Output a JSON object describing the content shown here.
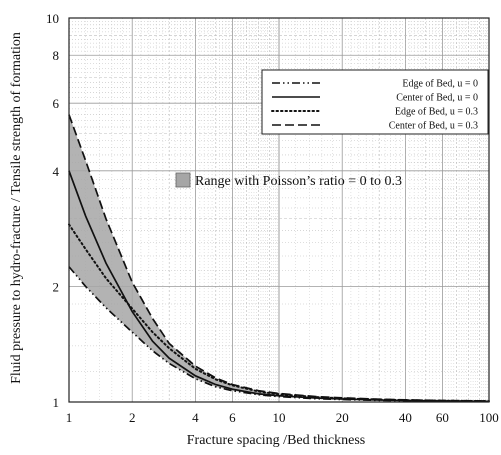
{
  "chart_data": {
    "type": "line",
    "xlabel": "Fracture spacing /Bed thickness",
    "ylabel": "Fluid pressure to hydro-fracture / Tensile strength of formation",
    "xscale": "log",
    "yscale": "log",
    "xlim": [
      1,
      100
    ],
    "ylim": [
      1,
      10
    ],
    "grid": true,
    "x_ticks": [
      {
        "v": 1,
        "label": "1"
      },
      {
        "v": 2,
        "label": "2"
      },
      {
        "v": 4,
        "label": "4"
      },
      {
        "v": 6,
        "label": "6"
      },
      {
        "v": 10,
        "label": "10"
      },
      {
        "v": 20,
        "label": "20"
      },
      {
        "v": 40,
        "label": "40"
      },
      {
        "v": 60,
        "label": "60"
      },
      {
        "v": 100,
        "label": "100"
      }
    ],
    "y_ticks": [
      {
        "v": 1,
        "label": "1"
      },
      {
        "v": 2,
        "label": "2"
      },
      {
        "v": 4,
        "label": "4"
      },
      {
        "v": 6,
        "label": "6"
      },
      {
        "v": 8,
        "label": "8"
      },
      {
        "v": 10,
        "label": "10"
      }
    ],
    "legend_position": "top-right",
    "series": [
      {
        "name": "Edge of Bed, u = 0",
        "dash": "dash-dot-dot",
        "x": [
          1,
          1.2,
          1.5,
          2,
          2.5,
          3,
          4,
          5,
          6,
          8,
          10,
          15,
          20,
          30,
          40,
          60,
          100
        ],
        "y": [
          2.25,
          2.0,
          1.76,
          1.52,
          1.36,
          1.26,
          1.15,
          1.095,
          1.07,
          1.045,
          1.033,
          1.02,
          1.015,
          1.01,
          1.008,
          1.005,
          1.003
        ]
      },
      {
        "name": "Center of Bed, u = 0",
        "dash": "solid",
        "x": [
          1,
          1.2,
          1.5,
          2,
          2.5,
          3,
          4,
          5,
          6,
          8,
          10,
          15,
          20,
          30,
          40,
          60,
          100
        ],
        "y": [
          4.0,
          3.05,
          2.3,
          1.72,
          1.44,
          1.3,
          1.17,
          1.11,
          1.08,
          1.05,
          1.038,
          1.024,
          1.018,
          1.012,
          1.009,
          1.006,
          1.004
        ]
      },
      {
        "name": "Edge of Bed, u = 0.3",
        "dash": "dotted",
        "x": [
          1,
          1.2,
          1.5,
          2,
          2.5,
          3,
          4,
          5,
          6,
          8,
          10,
          15,
          20,
          30,
          40,
          60,
          100
        ],
        "y": [
          2.9,
          2.5,
          2.1,
          1.75,
          1.52,
          1.38,
          1.22,
          1.145,
          1.105,
          1.065,
          1.048,
          1.03,
          1.022,
          1.015,
          1.011,
          1.008,
          1.005
        ]
      },
      {
        "name": "Center of Bed, u = 0.3",
        "dash": "dashed",
        "x": [
          1,
          1.2,
          1.5,
          2,
          2.5,
          3,
          4,
          5,
          6,
          8,
          10,
          15,
          20,
          30,
          40,
          60,
          100
        ],
        "y": [
          5.6,
          4.25,
          3.0,
          2.05,
          1.65,
          1.42,
          1.24,
          1.155,
          1.11,
          1.07,
          1.052,
          1.033,
          1.025,
          1.017,
          1.013,
          1.009,
          1.006
        ]
      }
    ],
    "band": {
      "label": "Range with Poisson’s ratio = 0 to 0.3",
      "color": "#a6a6a6",
      "x": [
        1,
        1.2,
        1.5,
        2,
        2.5,
        3,
        4,
        5,
        6,
        8,
        10
      ],
      "lower": [
        2.25,
        2.0,
        1.76,
        1.52,
        1.36,
        1.26,
        1.15,
        1.095,
        1.07,
        1.045,
        1.033
      ],
      "upper": [
        5.6,
        4.25,
        3.0,
        2.05,
        1.65,
        1.42,
        1.24,
        1.155,
        1.11,
        1.07,
        1.052
      ]
    }
  }
}
